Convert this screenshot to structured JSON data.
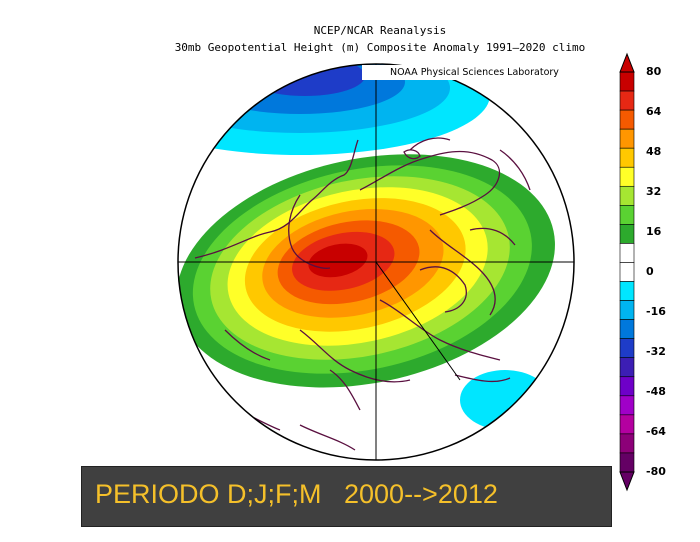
{
  "title": {
    "line1": "NCEP/NCAR Reanalysis",
    "line2": "30mb Geopotential Height (m) Composite Anomaly 1991–2020 climo"
  },
  "credit": "NOAA Physical Sciences Laboratory",
  "colorbar": {
    "labels": [
      "80",
      "64",
      "48",
      "32",
      "16",
      "0",
      "-16",
      "-32",
      "-48",
      "-64",
      "-80"
    ],
    "colors": [
      "#c80000",
      "#e62814",
      "#f55a00",
      "#ff9600",
      "#ffc800",
      "#ffff28",
      "#a6e632",
      "#5ad232",
      "#2daa2d",
      "#ffffff",
      "#ffffff",
      "#00e6ff",
      "#00b4f0",
      "#0078dc",
      "#1e3cc8",
      "#3c1eb4",
      "#6e00c8",
      "#a000c8",
      "#b400a0",
      "#8c0078",
      "#640064"
    ]
  },
  "banner": {
    "text": "PERIODO D;J;F;M   2000-->2012"
  }
}
